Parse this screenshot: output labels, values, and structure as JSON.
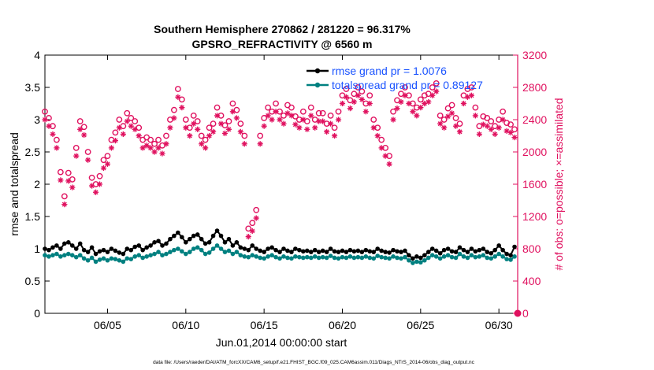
{
  "chart_data": {
    "type": "line",
    "title_line1": "Southern Hemisphere 270862 / 281220 = 96.317%",
    "title_line2": "GPSRO_REFRACTIVITY @ 6560 m",
    "xlabel": "Jun.01,2014 00:00:00 start",
    "ylabel_left": "rmse and totalspread",
    "ylabel_right": "# of obs: o=possible; ×=assimilated",
    "footer": "data file: /Users/raeder/DAI/ATM_forcXX/CAM6_setup/f.e21.FHIST_BGC.f09_025.CAM6assim.011/Diags_NTrS_2014-06/obs_diag_output.nc",
    "xlim": [
      1.0,
      31.2
    ],
    "ylim_left": [
      0,
      4
    ],
    "ylim_right": [
      0,
      3200
    ],
    "x_ticks": [
      5,
      10,
      15,
      20,
      25,
      30
    ],
    "x_tick_labels": [
      "06/05",
      "06/10",
      "06/15",
      "06/20",
      "06/25",
      "06/30"
    ],
    "y_left_ticks": [
      0,
      0.5,
      1,
      1.5,
      2,
      2.5,
      3,
      3.5,
      4
    ],
    "y_left_tick_labels": [
      "0",
      "0.5",
      "1",
      "1.5",
      "2",
      "2.5",
      "3",
      "3.5",
      "4"
    ],
    "y_right_ticks": [
      0,
      400,
      800,
      1200,
      1600,
      2000,
      2400,
      2800,
      3200
    ],
    "y_right_tick_labels": [
      "0",
      "400",
      "800",
      "1200",
      "1600",
      "2000",
      "2400",
      "2800",
      "3200"
    ],
    "legend": [
      {
        "name": "rmse grand pr = 1.0076",
        "color": "#000000"
      },
      {
        "name": "totalspread grand pr = 0.89127",
        "color": "#008080"
      }
    ],
    "series": [
      {
        "name": "rmse",
        "color": "#000000",
        "x": [
          1.0,
          1.25,
          1.5,
          1.75,
          2.0,
          2.25,
          2.5,
          2.75,
          3.0,
          3.25,
          3.5,
          3.75,
          4.0,
          4.25,
          4.5,
          4.75,
          5.0,
          5.25,
          5.5,
          5.75,
          6.0,
          6.25,
          6.5,
          6.75,
          7.0,
          7.25,
          7.5,
          7.75,
          8.0,
          8.25,
          8.5,
          8.75,
          9.0,
          9.25,
          9.5,
          9.75,
          10.0,
          10.25,
          10.5,
          10.75,
          11.0,
          11.25,
          11.5,
          11.75,
          12.0,
          12.25,
          12.5,
          12.75,
          13.0,
          13.25,
          13.5,
          13.75,
          14.0,
          14.25,
          14.5,
          14.75,
          15.0,
          15.25,
          15.5,
          15.75,
          16.0,
          16.25,
          16.5,
          16.75,
          17.0,
          17.25,
          17.5,
          17.75,
          18.0,
          18.25,
          18.5,
          18.75,
          19.0,
          19.25,
          19.5,
          19.75,
          20.0,
          20.25,
          20.5,
          20.75,
          21.0,
          21.25,
          21.5,
          21.75,
          22.0,
          22.25,
          22.5,
          22.75,
          23.0,
          23.25,
          23.5,
          23.75,
          24.0,
          24.25,
          24.5,
          24.75,
          25.0,
          25.25,
          25.5,
          25.75,
          26.0,
          26.25,
          26.5,
          26.75,
          27.0,
          27.25,
          27.5,
          27.75,
          28.0,
          28.25,
          28.5,
          28.75,
          29.0,
          29.25,
          29.5,
          29.75,
          30.0,
          30.25,
          30.5,
          30.75,
          31.0
        ],
        "values": [
          1.0,
          0.98,
          1.02,
          1.05,
          1.0,
          1.08,
          1.1,
          1.05,
          1.0,
          1.08,
          0.98,
          0.95,
          1.02,
          0.92,
          0.96,
          0.98,
          0.95,
          1.0,
          0.97,
          0.94,
          0.92,
          1.0,
          0.98,
          1.03,
          1.05,
          0.98,
          1.02,
          1.05,
          1.1,
          1.12,
          1.05,
          1.08,
          1.15,
          1.2,
          1.25,
          1.18,
          1.1,
          1.15,
          1.2,
          1.22,
          1.15,
          1.08,
          1.1,
          1.2,
          1.28,
          1.2,
          1.1,
          1.15,
          1.05,
          1.1,
          1.02,
          1.0,
          0.98,
          1.05,
          1.0,
          0.97,
          0.95,
          1.0,
          1.02,
          0.98,
          0.95,
          1.0,
          0.97,
          0.95,
          1.0,
          0.98,
          0.96,
          0.97,
          0.95,
          0.98,
          0.95,
          0.97,
          0.95,
          1.0,
          0.96,
          0.95,
          0.97,
          0.95,
          0.98,
          0.96,
          0.97,
          0.95,
          0.98,
          0.96,
          0.95,
          1.0,
          0.97,
          0.95,
          0.94,
          0.98,
          0.96,
          0.95,
          0.97,
          0.9,
          0.85,
          0.88,
          0.86,
          0.9,
          0.95,
          1.0,
          0.97,
          0.93,
          0.98,
          1.0,
          0.96,
          0.95,
          1.02,
          0.98,
          0.95,
          1.0,
          0.96,
          0.98,
          1.0,
          0.95,
          0.93,
          0.98,
          1.05,
          0.98,
          0.92,
          0.9,
          1.03
        ]
      },
      {
        "name": "totalspread",
        "color": "#008080",
        "x": [
          1.0,
          1.25,
          1.5,
          1.75,
          2.0,
          2.25,
          2.5,
          2.75,
          3.0,
          3.25,
          3.5,
          3.75,
          4.0,
          4.25,
          4.5,
          4.75,
          5.0,
          5.25,
          5.5,
          5.75,
          6.0,
          6.25,
          6.5,
          6.75,
          7.0,
          7.25,
          7.5,
          7.75,
          8.0,
          8.25,
          8.5,
          8.75,
          9.0,
          9.25,
          9.5,
          9.75,
          10.0,
          10.25,
          10.5,
          10.75,
          11.0,
          11.25,
          11.5,
          11.75,
          12.0,
          12.25,
          12.5,
          12.75,
          13.0,
          13.25,
          13.5,
          13.75,
          14.0,
          14.25,
          14.5,
          14.75,
          15.0,
          15.25,
          15.5,
          15.75,
          16.0,
          16.25,
          16.5,
          16.75,
          17.0,
          17.25,
          17.5,
          17.75,
          18.0,
          18.25,
          18.5,
          18.75,
          19.0,
          19.25,
          19.5,
          19.75,
          20.0,
          20.25,
          20.5,
          20.75,
          21.0,
          21.25,
          21.5,
          21.75,
          22.0,
          22.25,
          22.5,
          22.75,
          23.0,
          23.25,
          23.5,
          23.75,
          24.0,
          24.25,
          24.5,
          24.75,
          25.0,
          25.25,
          25.5,
          25.75,
          26.0,
          26.25,
          26.5,
          26.75,
          27.0,
          27.25,
          27.5,
          27.75,
          28.0,
          28.25,
          28.5,
          28.75,
          29.0,
          29.25,
          29.5,
          29.75,
          30.0,
          30.25,
          30.5,
          30.75,
          31.0
        ],
        "values": [
          0.9,
          0.88,
          0.9,
          0.92,
          0.88,
          0.9,
          0.92,
          0.9,
          0.87,
          0.9,
          0.85,
          0.82,
          0.86,
          0.8,
          0.83,
          0.85,
          0.82,
          0.85,
          0.84,
          0.82,
          0.8,
          0.85,
          0.84,
          0.88,
          0.9,
          0.86,
          0.88,
          0.9,
          0.92,
          0.95,
          0.9,
          0.92,
          0.95,
          0.98,
          1.0,
          0.96,
          0.92,
          0.95,
          1.0,
          1.02,
          0.98,
          0.92,
          0.94,
          1.0,
          1.05,
          1.0,
          0.95,
          0.97,
          0.92,
          0.95,
          0.9,
          0.88,
          0.87,
          0.9,
          0.88,
          0.86,
          0.85,
          0.88,
          0.9,
          0.87,
          0.85,
          0.88,
          0.86,
          0.85,
          0.88,
          0.87,
          0.86,
          0.87,
          0.86,
          0.88,
          0.86,
          0.87,
          0.86,
          0.89,
          0.86,
          0.85,
          0.87,
          0.86,
          0.88,
          0.86,
          0.87,
          0.86,
          0.88,
          0.86,
          0.85,
          0.89,
          0.87,
          0.86,
          0.85,
          0.88,
          0.86,
          0.85,
          0.87,
          0.82,
          0.78,
          0.8,
          0.79,
          0.82,
          0.86,
          0.9,
          0.88,
          0.85,
          0.88,
          0.9,
          0.87,
          0.86,
          0.92,
          0.88,
          0.86,
          0.9,
          0.87,
          0.88,
          0.9,
          0.86,
          0.85,
          0.88,
          0.92,
          0.88,
          0.84,
          0.83,
          0.88
        ]
      },
      {
        "name": "obs possible",
        "marker": "o",
        "color": "#e0115f",
        "x": [
          1.0,
          1.25,
          1.5,
          1.75,
          2.0,
          2.25,
          2.5,
          2.75,
          3.0,
          3.25,
          3.5,
          3.75,
          4.0,
          4.25,
          4.5,
          4.75,
          5.0,
          5.25,
          5.5,
          5.75,
          6.0,
          6.25,
          6.5,
          6.75,
          7.0,
          7.25,
          7.5,
          7.75,
          8.0,
          8.25,
          8.5,
          8.75,
          9.0,
          9.25,
          9.5,
          9.75,
          10.0,
          10.25,
          10.5,
          10.75,
          11.0,
          11.25,
          11.5,
          11.75,
          12.0,
          12.25,
          12.5,
          12.75,
          13.0,
          13.25,
          13.5,
          13.75,
          14.0,
          14.25,
          14.5,
          14.75,
          15.0,
          15.25,
          15.5,
          15.75,
          16.0,
          16.25,
          16.5,
          16.75,
          17.0,
          17.25,
          17.5,
          17.75,
          18.0,
          18.25,
          18.5,
          18.75,
          19.0,
          19.25,
          19.5,
          19.75,
          20.0,
          20.25,
          20.5,
          20.75,
          21.0,
          21.25,
          21.5,
          21.75,
          22.0,
          22.25,
          22.5,
          22.75,
          23.0,
          23.25,
          23.5,
          23.75,
          24.0,
          24.25,
          24.5,
          24.75,
          25.0,
          25.25,
          25.5,
          25.75,
          26.0,
          26.25,
          26.5,
          26.75,
          27.0,
          27.25,
          27.5,
          27.75,
          28.0,
          28.25,
          28.5,
          28.75,
          29.0,
          29.25,
          29.5,
          29.75,
          30.0,
          30.25,
          30.5,
          30.75,
          31.0
        ],
        "values": [
          2500,
          2420,
          2320,
          2150,
          1750,
          1450,
          1740,
          1660,
          2050,
          2380,
          2310,
          2000,
          1680,
          1600,
          1700,
          1900,
          1950,
          2150,
          2240,
          2400,
          2320,
          2480,
          2420,
          2380,
          2300,
          2150,
          2180,
          2150,
          2100,
          2150,
          2080,
          2200,
          2400,
          2520,
          2780,
          2650,
          2400,
          2300,
          2450,
          2380,
          2200,
          2150,
          2300,
          2350,
          2550,
          2450,
          2330,
          2380,
          2600,
          2520,
          2350,
          2200,
          1050,
          1120,
          1280,
          2200,
          2420,
          2550,
          2500,
          2600,
          2500,
          2450,
          2580,
          2550,
          2440,
          2400,
          2500,
          2380,
          2550,
          2400,
          2480,
          2480,
          2350,
          2450,
          2300,
          2500,
          2700,
          2780,
          2640,
          2720,
          2800,
          2750,
          2600,
          2700,
          2400,
          2300,
          2150,
          2050,
          1950,
          2500,
          2640,
          2720,
          2800,
          2700,
          2600,
          2550,
          2650,
          2700,
          2720,
          2800,
          2850,
          2450,
          2400,
          2540,
          2580,
          2420,
          2350,
          2700,
          2780,
          2800,
          2550,
          2320,
          2440,
          2420,
          2380,
          2320,
          2400,
          2500,
          2360,
          2340,
          2280
        ]
      },
      {
        "name": "obs assimilated",
        "marker": "x",
        "color": "#e0115f",
        "x": [
          1.0,
          1.25,
          1.5,
          1.75,
          2.0,
          2.25,
          2.5,
          2.75,
          3.0,
          3.25,
          3.5,
          3.75,
          4.0,
          4.25,
          4.5,
          4.75,
          5.0,
          5.25,
          5.5,
          5.75,
          6.0,
          6.25,
          6.5,
          6.75,
          7.0,
          7.25,
          7.5,
          7.75,
          8.0,
          8.25,
          8.5,
          8.75,
          9.0,
          9.25,
          9.5,
          9.75,
          10.0,
          10.25,
          10.5,
          10.75,
          11.0,
          11.25,
          11.5,
          11.75,
          12.0,
          12.25,
          12.5,
          12.75,
          13.0,
          13.25,
          13.5,
          13.75,
          14.0,
          14.25,
          14.5,
          14.75,
          15.0,
          15.25,
          15.5,
          15.75,
          16.0,
          16.25,
          16.5,
          16.75,
          17.0,
          17.25,
          17.5,
          17.75,
          18.0,
          18.25,
          18.5,
          18.75,
          19.0,
          19.25,
          19.5,
          19.75,
          20.0,
          20.25,
          20.5,
          20.75,
          21.0,
          21.25,
          21.5,
          21.75,
          22.0,
          22.25,
          22.5,
          22.75,
          23.0,
          23.25,
          23.5,
          23.75,
          24.0,
          24.25,
          24.5,
          24.75,
          25.0,
          25.25,
          25.5,
          25.75,
          26.0,
          26.25,
          26.5,
          26.75,
          27.0,
          27.25,
          27.5,
          27.75,
          28.0,
          28.25,
          28.5,
          28.75,
          29.0,
          29.25,
          29.5,
          29.75,
          30.0,
          30.25,
          30.5,
          30.75,
          31.0
        ],
        "values": [
          2400,
          2320,
          2220,
          2050,
          1650,
          1350,
          1640,
          1560,
          1950,
          2280,
          2210,
          1900,
          1580,
          1500,
          1600,
          1800,
          1850,
          2050,
          2140,
          2300,
          2220,
          2380,
          2320,
          2280,
          2200,
          2050,
          2080,
          2050,
          2000,
          2050,
          1980,
          2100,
          2300,
          2420,
          2680,
          2550,
          2300,
          2200,
          2350,
          2280,
          2100,
          2050,
          2200,
          2250,
          2450,
          2350,
          2230,
          2280,
          2500,
          2420,
          2250,
          2100,
          950,
          1020,
          1180,
          2100,
          2320,
          2450,
          2400,
          2500,
          2400,
          2350,
          2480,
          2450,
          2340,
          2300,
          2400,
          2280,
          2450,
          2300,
          2380,
          2380,
          2250,
          2350,
          2200,
          2400,
          2600,
          2680,
          2540,
          2620,
          2700,
          2650,
          2500,
          2600,
          2300,
          2200,
          2050,
          1950,
          1850,
          2400,
          2540,
          2620,
          2700,
          2600,
          2500,
          2450,
          2550,
          2600,
          2620,
          2700,
          2750,
          2350,
          2300,
          2440,
          2480,
          2320,
          2250,
          2600,
          2680,
          2700,
          2450,
          2220,
          2340,
          2320,
          2280,
          2220,
          2300,
          2400,
          2260,
          2240,
          2180
        ]
      }
    ]
  },
  "colors": {
    "rmse": "#000000",
    "spread": "#008080",
    "obs": "#e0115f",
    "legend_text": "#1a53ff"
  }
}
